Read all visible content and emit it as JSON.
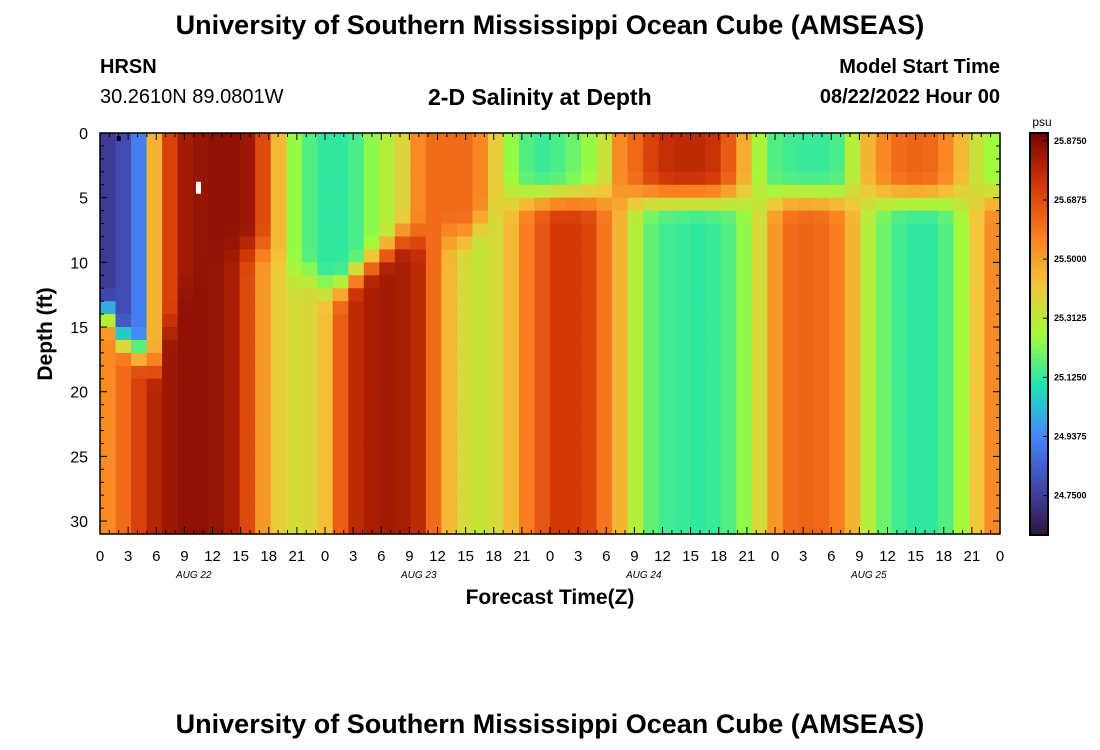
{
  "header": {
    "title": "University of Southern Mississippi Ocean Cube (AMSEAS)",
    "station": "HRSN",
    "coords": "30.2610N  89.0801W",
    "chart_title": "2-D Salinity at Depth",
    "model_start_label": "Model Start Time",
    "model_start_value": "08/22/2022 Hour 00"
  },
  "footer": {
    "title": "University of Southern Mississippi Ocean Cube (AMSEAS)"
  },
  "colors": {
    "background": "#ffffff",
    "text": "#000000",
    "colormap": [
      "#30123b",
      "#4146ac",
      "#4686fb",
      "#1ae4b6",
      "#a2fc3c",
      "#f3c63a",
      "#fa7d20",
      "#d33807",
      "#7a0403"
    ]
  },
  "chart_data": {
    "type": "heatmap",
    "title": "2-D Salinity at Depth",
    "xlabel": "Forecast Time(Z)",
    "ylabel": "Depth (ft)",
    "x_hours_range": [
      0,
      96
    ],
    "ylim": [
      0,
      31
    ],
    "y_ticks": [
      0,
      5,
      10,
      15,
      20,
      25,
      30
    ],
    "x_ticks": [
      "0",
      "3",
      "6",
      "9",
      "12",
      "15",
      "18",
      "21",
      "0",
      "3",
      "6",
      "9",
      "12",
      "15",
      "18",
      "21",
      "0",
      "3",
      "6",
      "9",
      "12",
      "15",
      "18",
      "21",
      "0",
      "3",
      "6",
      "9",
      "12",
      "15",
      "18",
      "21",
      "0"
    ],
    "date_labels": [
      "AUG 22",
      "AUG 23",
      "AUG 24",
      "AUG 25"
    ],
    "colorbar": {
      "unit": "psu",
      "vmin": 24.625,
      "vmax": 25.9,
      "labels": [
        "25.8750",
        "25.6875",
        "25.5000",
        "25.3125",
        "25.1250",
        "24.9375",
        "24.7500"
      ],
      "label_values": [
        25.875,
        25.6875,
        25.5,
        25.3125,
        25.125,
        24.9375,
        24.75
      ]
    },
    "surface_profile_psu": [
      24.75,
      24.8,
      24.92,
      25.46,
      25.72,
      25.83,
      25.85,
      25.86,
      25.86,
      25.84,
      25.7,
      25.45,
      25.25,
      25.17,
      25.13,
      25.13,
      25.16,
      25.24,
      25.3,
      25.38,
      25.55,
      25.62,
      25.62,
      25.62,
      25.56,
      25.4,
      25.25,
      25.17,
      25.14,
      25.16,
      25.2,
      25.25,
      25.34,
      25.55,
      25.63,
      25.72,
      25.77,
      25.78,
      25.78,
      25.76,
      25.66,
      25.48,
      25.28,
      25.17,
      25.15,
      25.14,
      25.14,
      25.16,
      25.3,
      25.46,
      25.56,
      25.62,
      25.64,
      25.63,
      25.56,
      25.45,
      25.34,
      25.26
    ],
    "bottom_profile_psu": [
      25.55,
      25.62,
      25.72,
      25.8,
      25.84,
      25.86,
      25.86,
      25.85,
      25.82,
      25.7,
      25.52,
      25.4,
      25.36,
      25.37,
      25.44,
      25.65,
      25.78,
      25.82,
      25.83,
      25.82,
      25.78,
      25.62,
      25.45,
      25.36,
      25.33,
      25.36,
      25.45,
      25.58,
      25.67,
      25.74,
      25.74,
      25.71,
      25.6,
      25.46,
      25.3,
      25.19,
      25.15,
      25.14,
      25.13,
      25.14,
      25.17,
      25.24,
      25.36,
      25.52,
      25.62,
      25.64,
      25.63,
      25.58,
      25.46,
      25.3,
      25.2,
      25.15,
      25.13,
      25.13,
      25.17,
      25.27,
      25.42,
      25.55
    ],
    "upper_layer_bottom_ft": [
      14,
      16,
      17,
      18,
      15,
      12,
      10,
      10,
      9,
      9,
      9,
      10,
      11,
      11,
      12,
      12,
      11,
      10,
      9,
      8,
      8,
      8,
      8,
      8,
      7,
      6,
      5,
      5,
      5,
      5,
      5,
      5,
      5,
      5,
      5,
      5,
      5,
      5,
      5,
      5,
      5,
      5,
      5,
      5,
      5,
      5,
      5,
      5,
      5,
      5,
      5,
      5,
      5,
      5,
      5,
      5,
      5,
      5
    ],
    "markers": [
      {
        "hour": 2,
        "depth_ft": 0.2,
        "color": "#000000"
      },
      {
        "hour": 10.5,
        "depth_ft": 4,
        "color": "#ffffff"
      }
    ]
  }
}
